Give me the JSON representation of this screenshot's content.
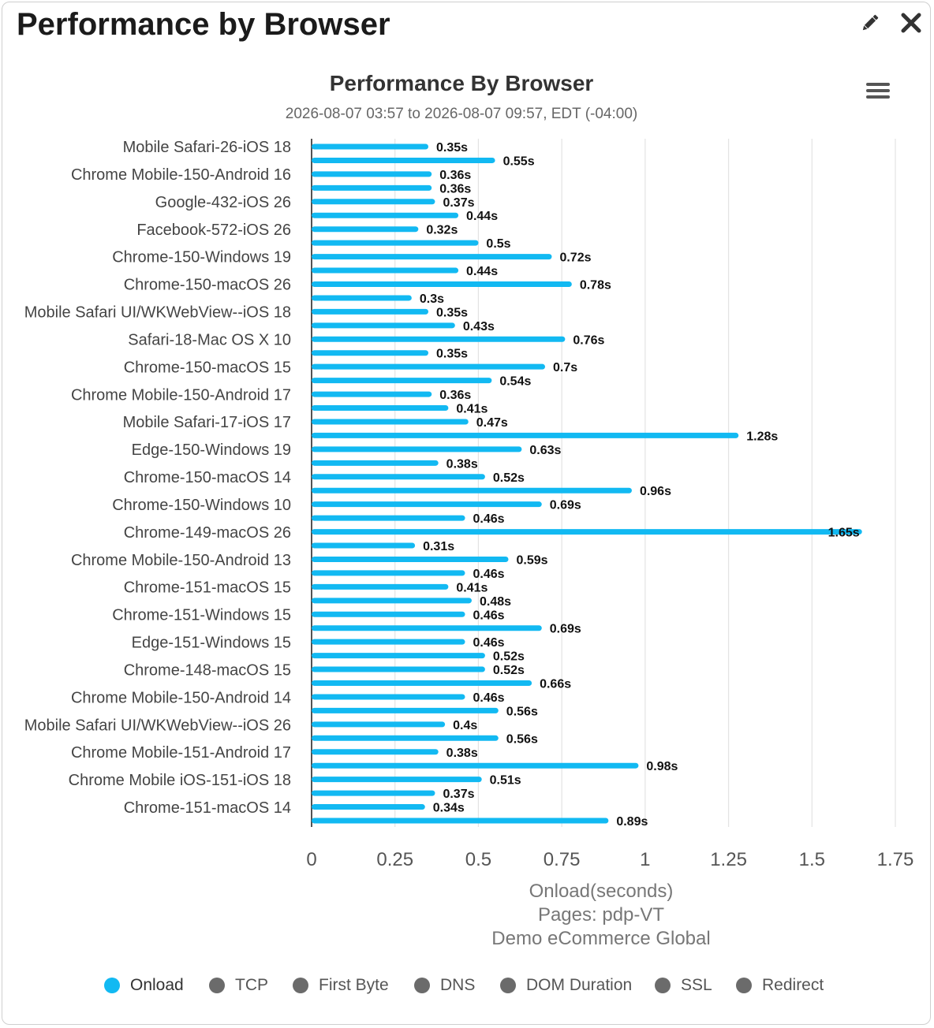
{
  "panel": {
    "title": "Performance by Browser",
    "edit_icon": "pencil-icon",
    "close_icon": "close-icon",
    "menu_icon": "hamburger-menu-icon"
  },
  "colors": {
    "onload": "#12b9f2",
    "inactive": "#6b6b6b",
    "grid": "#e3e3e3",
    "axis": "#1a1a1a"
  },
  "chart_data": {
    "type": "bar",
    "orientation": "horizontal",
    "title": "Performance By Browser",
    "subtitle": "2026-08-07 03:57 to 2026-08-07 09:57, EDT (-04:00)",
    "xlabel": "Onload(seconds)",
    "xlabel_lines": [
      "Pages: pdp-VT",
      "Demo eCommerce Global"
    ],
    "xlim": [
      0,
      1.75
    ],
    "xticks": [
      0,
      0.25,
      0.5,
      0.75,
      1,
      1.25,
      1.5,
      1.75
    ],
    "xtick_labels": [
      "0",
      "0.25",
      "0.5",
      "0.75",
      "1",
      "1.25",
      "1.5",
      "1.75"
    ],
    "grid": true,
    "legend_position": "bottom",
    "visible_category_labels": [
      "Mobile Safari-26-iOS 18",
      "Chrome Mobile-150-Android 16",
      "Google-432-iOS 26",
      "Facebook-572-iOS 26",
      "Chrome-150-Windows 19",
      "Chrome-150-macOS 26",
      "Mobile Safari UI/WKWebView--iOS 18",
      "Safari-18-Mac OS X 10",
      "Chrome-150-macOS 15",
      "Chrome Mobile-150-Android 17",
      "Mobile Safari-17-iOS 17",
      "Edge-150-Windows 19",
      "Chrome-150-macOS 14",
      "Chrome-150-Windows 10",
      "Chrome-149-macOS 26",
      "Chrome Mobile-150-Android 13",
      "Chrome-151-macOS 15",
      "Chrome-151-Windows 15",
      "Edge-151-Windows 15",
      "Chrome-148-macOS 15",
      "Chrome Mobile-150-Android 14",
      "Mobile Safari UI/WKWebView--iOS 26",
      "Chrome Mobile-151-Android 17",
      "Chrome Mobile iOS-151-iOS 18",
      "Chrome-151-macOS 14"
    ],
    "series": [
      {
        "name": "Onload",
        "values": [
          0.35,
          0.55,
          0.36,
          0.36,
          0.37,
          0.44,
          0.32,
          0.5,
          0.72,
          0.44,
          0.78,
          0.3,
          0.35,
          0.43,
          0.76,
          0.35,
          0.7,
          0.54,
          0.36,
          0.41,
          0.47,
          1.28,
          0.63,
          0.38,
          0.52,
          0.96,
          0.69,
          0.46,
          1.65,
          0.31,
          0.59,
          0.46,
          0.41,
          0.48,
          0.46,
          0.69,
          0.46,
          0.52,
          0.52,
          0.66,
          0.46,
          0.56,
          0.4,
          0.56,
          0.38,
          0.98,
          0.51,
          0.37,
          0.34,
          0.89
        ],
        "data_labels": [
          "0.35s",
          "0.55s",
          "0.36s",
          "0.36s",
          "0.37s",
          "0.44s",
          "0.32s",
          "0.5s",
          "0.72s",
          "0.44s",
          "0.78s",
          "0.3s",
          "0.35s",
          "0.43s",
          "0.76s",
          "0.35s",
          "0.7s",
          "0.54s",
          "0.36s",
          "0.41s",
          "0.47s",
          "1.28s",
          "0.63s",
          "0.38s",
          "0.52s",
          "0.96s",
          "0.69s",
          "0.46s",
          "1.65s",
          "0.31s",
          "0.59s",
          "0.46s",
          "0.41s",
          "0.48s",
          "0.46s",
          "0.69s",
          "0.46s",
          "0.52s",
          "0.52s",
          "0.66s",
          "0.46s",
          "0.56s",
          "0.4s",
          "0.56s",
          "0.38s",
          "0.98s",
          "0.51s",
          "0.37s",
          "0.34s",
          "0.89s"
        ]
      }
    ]
  },
  "legend": [
    {
      "label": "Onload",
      "active": true
    },
    {
      "label": "TCP",
      "active": false
    },
    {
      "label": "First Byte",
      "active": false
    },
    {
      "label": "DNS",
      "active": false
    },
    {
      "label": "DOM Duration",
      "active": false
    },
    {
      "label": "SSL",
      "active": false
    },
    {
      "label": "Redirect",
      "active": false
    }
  ]
}
